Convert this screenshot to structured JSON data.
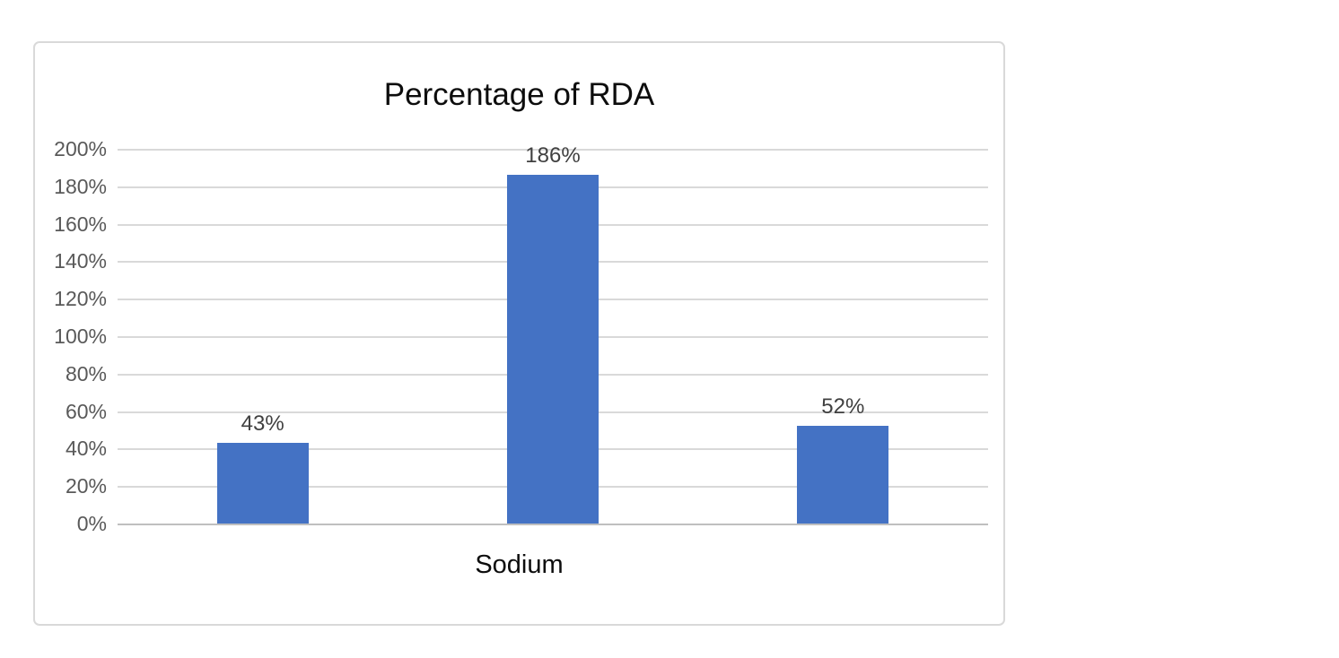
{
  "chart": {
    "title": "Percentage of RDA",
    "category_label": "Sodium",
    "y_tick_labels": [
      "200%",
      "180%",
      "160%",
      "140%",
      "120%",
      "100%",
      "80%",
      "60%",
      "40%",
      "20%",
      "0%"
    ],
    "colors": {
      "bar": "#4472C4",
      "gridline": "#D9D9D9",
      "axis_line": "#BFBFBF",
      "tick_label": "#595959",
      "data_label": "#404040",
      "title": "#0D0D0D",
      "frame_border": "#D9D9D9"
    }
  },
  "chart_data": {
    "type": "bar",
    "title": "Percentage of RDA",
    "categories": [
      "Sodium"
    ],
    "values": [
      43,
      186,
      52
    ],
    "data_labels": [
      "43%",
      "186%",
      "52%"
    ],
    "ylim": [
      0,
      200
    ],
    "y_tick_step": 20,
    "y_tick_format": "percent",
    "grid": true,
    "legend": false,
    "bar_color": "#4472C4"
  }
}
